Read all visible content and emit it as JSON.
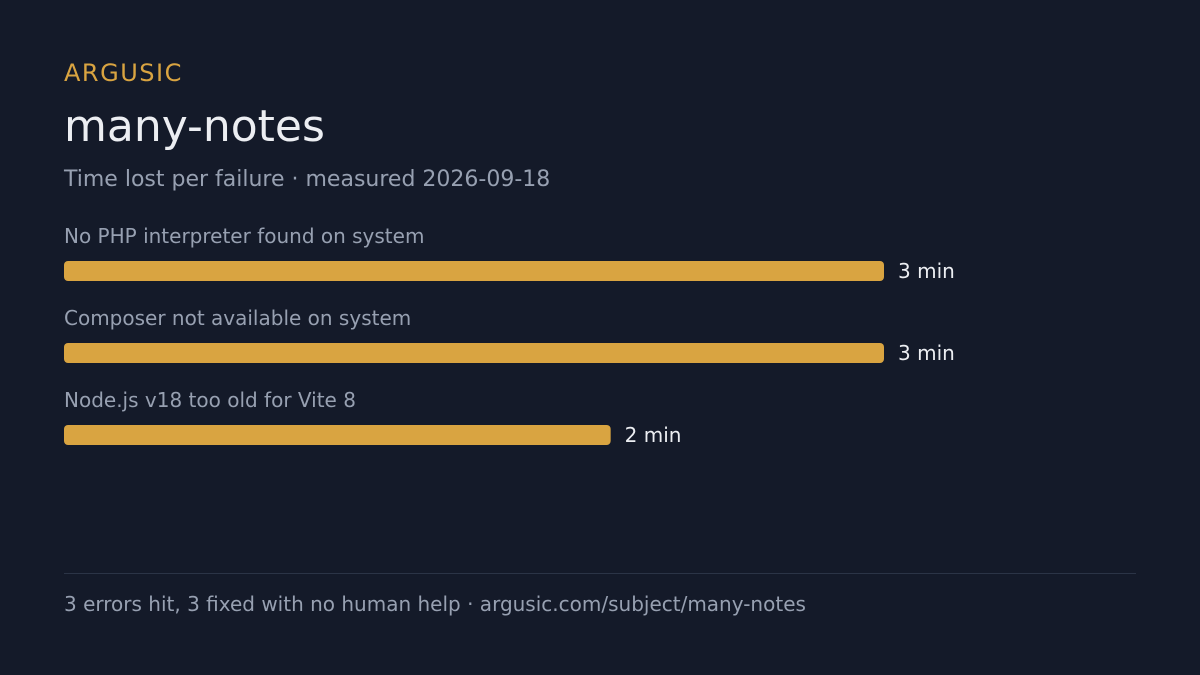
{
  "brand": "ARGUSIC",
  "title": "many-notes",
  "subtitle": "Time lost per failure · measured 2026-09-18",
  "footer": "3 errors hit, 3 fixed with no human help · argusic.com/subject/many-notes",
  "colors": {
    "background": "#141a29",
    "accent": "#d9a441",
    "bar": "#d9a441",
    "text_primary": "#eceef2",
    "text_muted": "#97a0b1",
    "divider": "#2b3446"
  },
  "chart_data": {
    "type": "bar",
    "orientation": "horizontal",
    "categories": [
      "No PHP interpreter  found on system",
      "Composer not available on system",
      "Node.js v18 too old for Vite 8"
    ],
    "values": [
      3,
      3,
      2
    ],
    "value_labels": [
      "3 min",
      "3 min",
      "2 min"
    ],
    "unit": "min",
    "xlim": [
      0,
      3
    ],
    "grid": false,
    "legend": "none"
  }
}
